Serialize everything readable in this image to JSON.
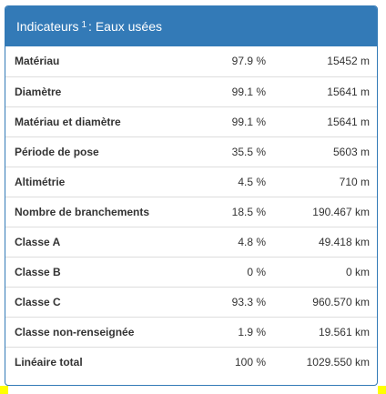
{
  "panel": {
    "title_prefix": "Indicateurs",
    "title_sup": "1",
    "title_suffix": ": Eaux usées"
  },
  "rows": [
    {
      "label": "Matériau",
      "percent": "97.9 %",
      "length": "15452 m"
    },
    {
      "label": "Diamètre",
      "percent": "99.1 %",
      "length": "15641 m"
    },
    {
      "label": "Matériau et diamètre",
      "percent": "99.1 %",
      "length": "15641 m"
    },
    {
      "label": "Période de pose",
      "percent": "35.5 %",
      "length": "5603 m"
    },
    {
      "label": "Altimétrie",
      "percent": "4.5 %",
      "length": "710 m"
    },
    {
      "label": "Nombre de branchements",
      "percent": "18.5 %",
      "length": "190.467 km"
    },
    {
      "label": "Classe A",
      "percent": "4.8 %",
      "length": "49.418 km"
    },
    {
      "label": "Classe B",
      "percent": "0 %",
      "length": "0 km"
    },
    {
      "label": "Classe C",
      "percent": "93.3 %",
      "length": "960.570 km"
    },
    {
      "label": "Classe non-renseignée",
      "percent": "1.9 %",
      "length": "19.561 km"
    },
    {
      "label": "Linéaire total",
      "percent": "100 %",
      "length": "1029.550 km"
    }
  ],
  "colors": {
    "header": "#337ab7",
    "marker": "#ffff00"
  }
}
